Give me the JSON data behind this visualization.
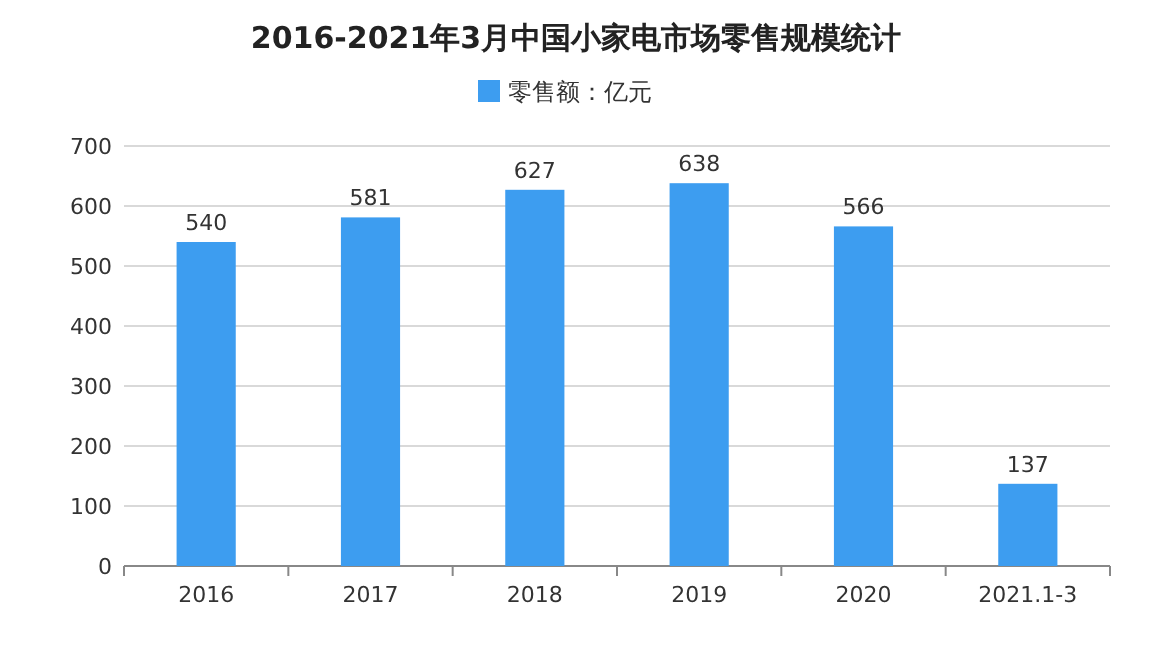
{
  "chart_data": {
    "type": "bar",
    "title": "2016-2021年3月中国小家电市场零售规模统计",
    "categories": [
      "2016",
      "2017",
      "2018",
      "2019",
      "2020",
      "2021.1-3"
    ],
    "series": [
      {
        "name": "零售额：亿元",
        "color": "#3d9df0",
        "values": [
          540,
          581,
          627,
          638,
          566,
          137
        ]
      }
    ],
    "ylim": [
      0,
      700
    ],
    "yticks": [
      0,
      100,
      200,
      300,
      400,
      500,
      600,
      700
    ],
    "grid": "y",
    "legend": "top",
    "data_labels": true
  }
}
